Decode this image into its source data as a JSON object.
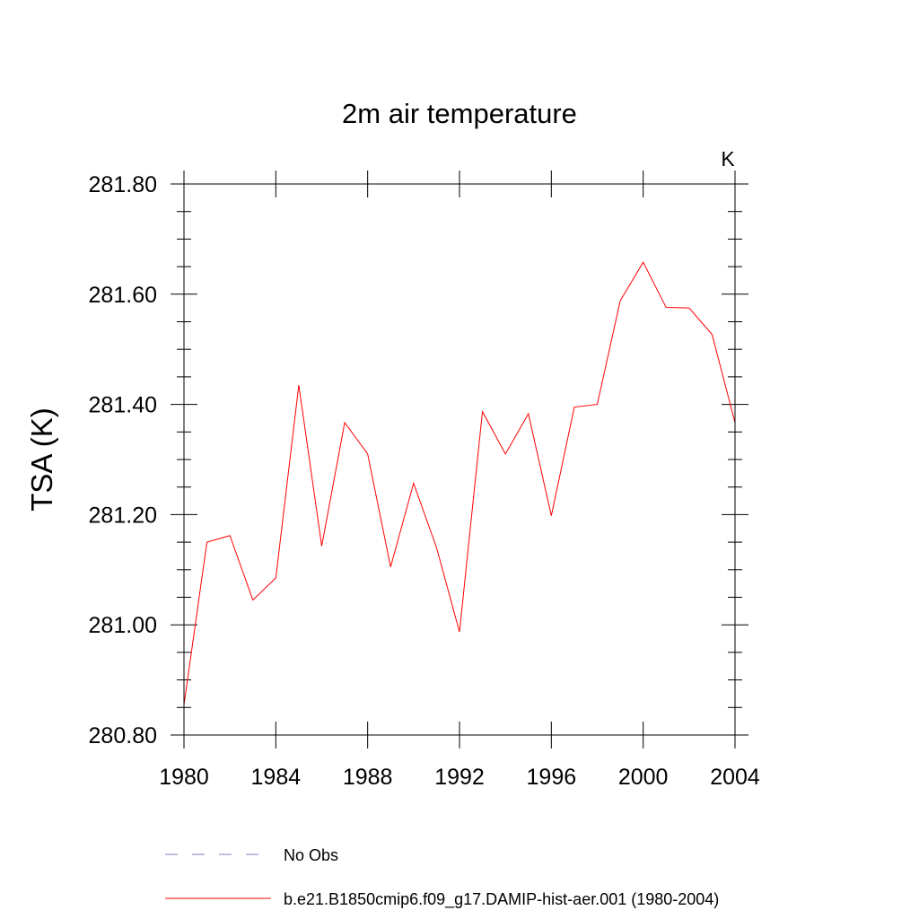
{
  "chart_data": {
    "type": "line",
    "title": "2m air temperature",
    "unit_label": "K",
    "ylabel": "TSA  (K)",
    "xlabel": "",
    "xlim": [
      1980,
      2004
    ],
    "ylim": [
      280.8,
      281.8
    ],
    "x_ticks": [
      1980,
      1984,
      1988,
      1992,
      1996,
      2000,
      2004
    ],
    "x_tick_labels": [
      "1980",
      "1984",
      "1988",
      "1992",
      "1996",
      "2000",
      "2004"
    ],
    "y_ticks": [
      280.8,
      281.0,
      281.2,
      281.4,
      281.6,
      281.8
    ],
    "y_tick_labels": [
      "280.80",
      "281.00",
      "281.20",
      "281.40",
      "281.60",
      "281.80"
    ],
    "grid": false,
    "series": [
      {
        "name": "b.e21.B1850cmip6.f09_g17.DAMIP-hist-aer.001 (1980-2004)",
        "color": "#ff0000",
        "x": [
          1980,
          1981,
          1982,
          1983,
          1984,
          1985,
          1986,
          1987,
          1988,
          1989,
          1990,
          1991,
          1992,
          1993,
          1994,
          1995,
          1996,
          1997,
          1998,
          1999,
          2000,
          2001,
          2002,
          2003,
          2004
        ],
        "y": [
          280.855,
          281.15,
          281.162,
          281.045,
          281.085,
          281.435,
          281.143,
          281.367,
          281.31,
          281.105,
          281.257,
          281.14,
          280.987,
          281.387,
          281.31,
          281.383,
          281.198,
          281.395,
          281.4,
          281.588,
          281.658,
          281.576,
          281.575,
          281.527,
          281.367
        ]
      }
    ],
    "legend": {
      "placement": "bottom-left",
      "entries": [
        {
          "label": "No Obs",
          "color": "#7f7fbf",
          "style": "dashed"
        },
        {
          "label": "b.e21.B1850cmip6.f09_g17.DAMIP-hist-aer.001 (1980-2004)",
          "color": "#ff0000",
          "style": "solid"
        }
      ]
    }
  }
}
